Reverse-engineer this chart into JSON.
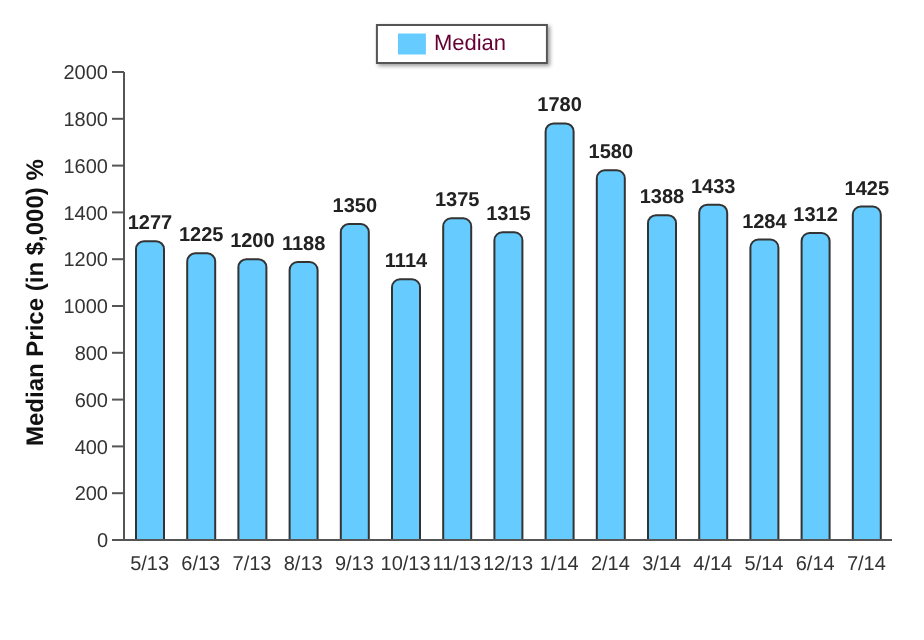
{
  "chart_data": {
    "type": "bar",
    "ylabel": "Median Price (in $,000) %",
    "categories": [
      "5/13",
      "6/13",
      "7/13",
      "8/13",
      "9/13",
      "10/13",
      "11/13",
      "12/13",
      "1/14",
      "2/14",
      "3/14",
      "4/14",
      "5/14",
      "6/14",
      "7/14"
    ],
    "series": [
      {
        "name": "Median",
        "color": "#66ccff",
        "values": [
          1277,
          1225,
          1200,
          1188,
          1350,
          1114,
          1375,
          1315,
          1780,
          1580,
          1388,
          1433,
          1284,
          1312,
          1425
        ]
      }
    ],
    "ylim": [
      0,
      2000
    ],
    "yticks": [
      0,
      200,
      400,
      600,
      800,
      1000,
      1200,
      1400,
      1600,
      1800,
      2000
    ],
    "data_labels": true,
    "legend": "top",
    "grid": false
  }
}
